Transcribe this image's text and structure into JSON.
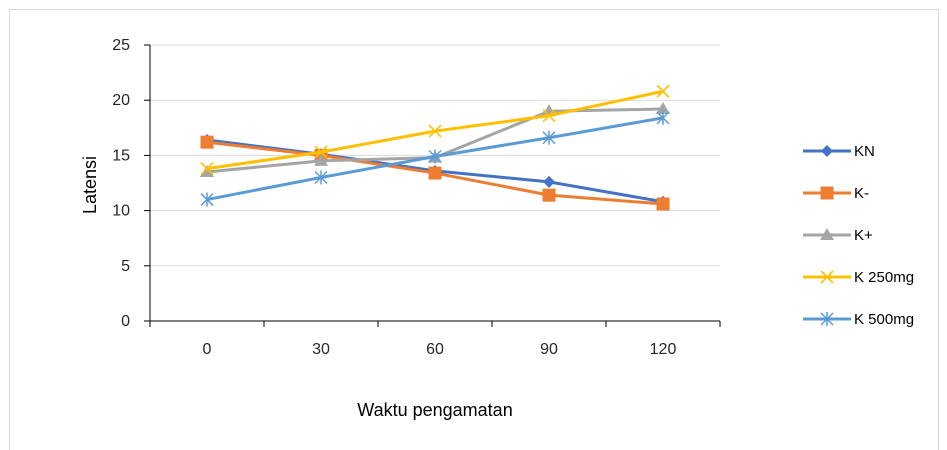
{
  "chart_data": {
    "type": "line",
    "title": "",
    "xlabel": "Waktu pengamatan",
    "ylabel": "Latensi",
    "categories": [
      "0",
      "30",
      "60",
      "90",
      "120"
    ],
    "ylim": [
      0,
      25
    ],
    "yticks": [
      "0",
      "5",
      "10",
      "15",
      "20",
      "25"
    ],
    "grid": "horizontal",
    "legend_position": "right",
    "series": [
      {
        "name": "KN",
        "values": [
          16.4,
          15.1,
          13.6,
          12.6,
          10.8
        ],
        "color": "#4472c4",
        "marker": "diamond"
      },
      {
        "name": "K-",
        "values": [
          16.2,
          15.0,
          13.4,
          11.4,
          10.6
        ],
        "color": "#ed7d31",
        "marker": "square"
      },
      {
        "name": "K+",
        "values": [
          13.5,
          14.5,
          14.8,
          19.0,
          19.2
        ],
        "color": "#a5a5a5",
        "marker": "triangle"
      },
      {
        "name": "K 250mg",
        "values": [
          13.8,
          15.3,
          17.2,
          18.6,
          20.8
        ],
        "color": "#ffc000",
        "marker": "x"
      },
      {
        "name": "K 500mg",
        "values": [
          11.0,
          13.0,
          14.9,
          16.6,
          18.4
        ],
        "color": "#5b9bd5",
        "marker": "star"
      }
    ]
  }
}
